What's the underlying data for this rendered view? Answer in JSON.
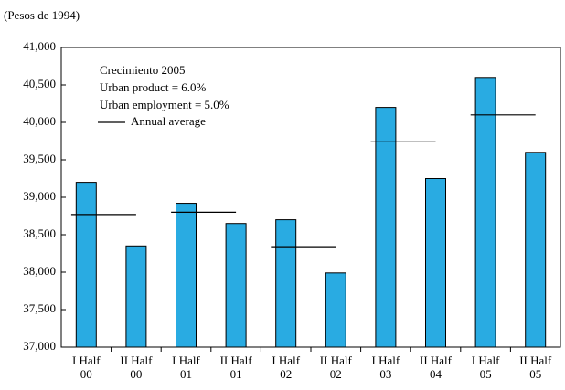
{
  "chart_data": {
    "type": "bar",
    "subtitle": "(Pesos de 1994)",
    "categories": [
      [
        "I Half",
        "00"
      ],
      [
        "II Half",
        "00"
      ],
      [
        "I Half",
        "01"
      ],
      [
        "II Half",
        "01"
      ],
      [
        "I Half",
        "02"
      ],
      [
        "II Half",
        "02"
      ],
      [
        "I Half",
        "03"
      ],
      [
        "II Half",
        "04"
      ],
      [
        "I Half",
        "05"
      ],
      [
        "II Half",
        "05"
      ]
    ],
    "values": [
      39200,
      38350,
      38920,
      38650,
      38700,
      37990,
      40200,
      39250,
      40600,
      39600
    ],
    "color": "#29abe2",
    "annual_average": {
      "name": "Annual average",
      "color": "#000000",
      "values": [
        38770,
        38800,
        38340,
        39740,
        40100
      ]
    },
    "annotations": [
      "Crecimiento 2005",
      "Urban product = 6.0%",
      "Urban employment = 5.0%"
    ],
    "annotation_color": "#29abe2",
    "ylim": [
      37000,
      41000
    ],
    "yticks": [
      {
        "value": 37000,
        "label": "37,000"
      },
      {
        "value": 37500,
        "label": "37,500"
      },
      {
        "value": 38000,
        "label": "38,000"
      },
      {
        "value": 38500,
        "label": "38,500"
      },
      {
        "value": 39000,
        "label": "39,000"
      },
      {
        "value": 39500,
        "label": "39,500"
      },
      {
        "value": 40000,
        "label": "40,000"
      },
      {
        "value": 40500,
        "label": "40,500"
      },
      {
        "value": 41000,
        "label": "41,000"
      }
    ],
    "grid": false
  }
}
